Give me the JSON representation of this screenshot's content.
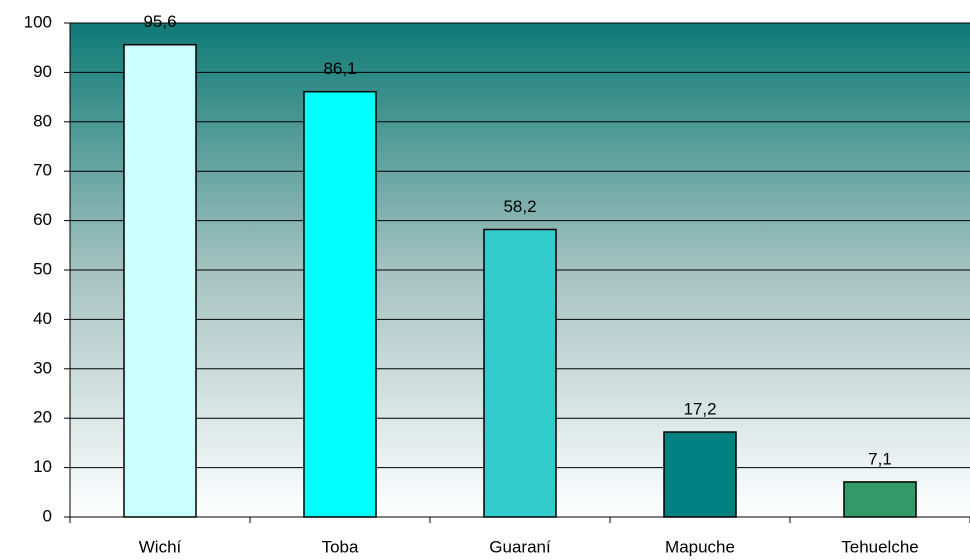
{
  "chart_data": {
    "type": "bar",
    "categories": [
      "Wichí",
      "Toba",
      "Guaraní",
      "Mapuche",
      "Tehuelche"
    ],
    "values": [
      95.6,
      86.1,
      58.2,
      17.2,
      7.1
    ],
    "value_labels": [
      "95,6",
      "86,1",
      "58,2",
      "17,2",
      "7,1"
    ],
    "colors": [
      "#ccffff",
      "#00ffff",
      "#33cccc",
      "#008080",
      "#339966"
    ],
    "ylim": [
      0,
      100
    ],
    "yticks": [
      0,
      10,
      20,
      30,
      40,
      50,
      60,
      70,
      80,
      90,
      100
    ],
    "grid": true
  }
}
